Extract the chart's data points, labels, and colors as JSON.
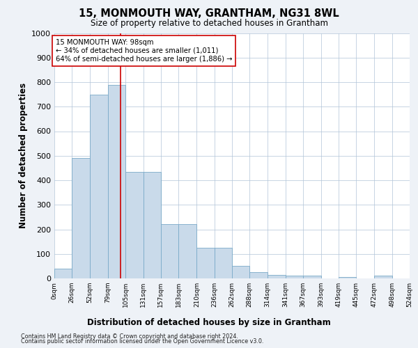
{
  "title": "15, MONMOUTH WAY, GRANTHAM, NG31 8WL",
  "subtitle": "Size of property relative to detached houses in Grantham",
  "xlabel": "Distribution of detached houses by size in Grantham",
  "ylabel": "Number of detached properties",
  "bar_color": "#c9daea",
  "bar_edge_color": "#7aaac8",
  "bins": [
    0,
    26,
    52,
    79,
    105,
    131,
    157,
    183,
    210,
    236,
    262,
    288,
    314,
    341,
    367,
    393,
    419,
    445,
    472,
    498,
    524
  ],
  "values": [
    40,
    490,
    750,
    790,
    435,
    435,
    220,
    220,
    125,
    125,
    50,
    25,
    15,
    10,
    10,
    0,
    5,
    0,
    10,
    0
  ],
  "property_size": 98,
  "annotation_line1": "15 MONMOUTH WAY: 98sqm",
  "annotation_line2": "← 34% of detached houses are smaller (1,011)",
  "annotation_line3": "64% of semi-detached houses are larger (1,886) →",
  "annotation_box_color": "white",
  "annotation_box_edge_color": "#cc0000",
  "vline_color": "#cc0000",
  "ylim": [
    0,
    1000
  ],
  "yticks": [
    0,
    100,
    200,
    300,
    400,
    500,
    600,
    700,
    800,
    900,
    1000
  ],
  "footer1": "Contains HM Land Registry data © Crown copyright and database right 2024.",
  "footer2": "Contains public sector information licensed under the Open Government Licence v3.0.",
  "background_color": "#eef2f7",
  "plot_background": "#ffffff",
  "grid_color": "#b0c4d8",
  "fig_width": 6.0,
  "fig_height": 5.0,
  "dpi": 100
}
